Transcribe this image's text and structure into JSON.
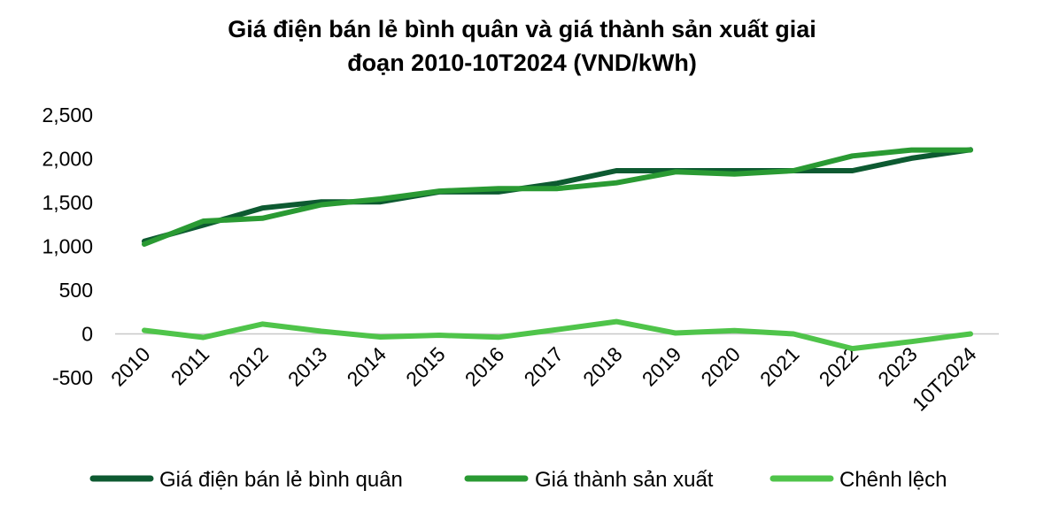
{
  "chart_data": {
    "type": "line",
    "title_line1": "Giá điện bán lẻ bình quân và giá thành sản xuất giai",
    "title_line2": "đoạn 2010-10T2024 (VND/kWh)",
    "xlabel": "",
    "ylabel": "",
    "categories": [
      "2010",
      "2011",
      "2012",
      "2013",
      "2014",
      "2015",
      "2016",
      "2017",
      "2018",
      "2019",
      "2020",
      "2021",
      "2022",
      "2023",
      "10T2024"
    ],
    "y_ticks": [
      "2,500",
      "2,000",
      "1,500",
      "1,000",
      "500",
      "0",
      "-500"
    ],
    "ylim": [
      -500,
      2500
    ],
    "grid": false,
    "legend_position": "bottom",
    "series": [
      {
        "name": "Giá điện bán lẻ bình quân",
        "color": "#0d5a31",
        "values": [
          1058,
          1242,
          1437,
          1508,
          1508,
          1622,
          1622,
          1720,
          1864,
          1864,
          1864,
          1864,
          1864,
          2006,
          2103
        ]
      },
      {
        "name": "Giá thành sản xuất",
        "color": "#2a9a33",
        "values": [
          1025,
          1288,
          1320,
          1475,
          1540,
          1630,
          1660,
          1660,
          1725,
          1850,
          1826,
          1864,
          2032,
          2100,
          2100
        ]
      },
      {
        "name": "Chênh lệch",
        "color": "#4fc44a",
        "values": [
          40,
          -40,
          112,
          30,
          -35,
          -15,
          -38,
          50,
          140,
          10,
          38,
          0,
          -168,
          -88,
          0
        ]
      }
    ]
  }
}
